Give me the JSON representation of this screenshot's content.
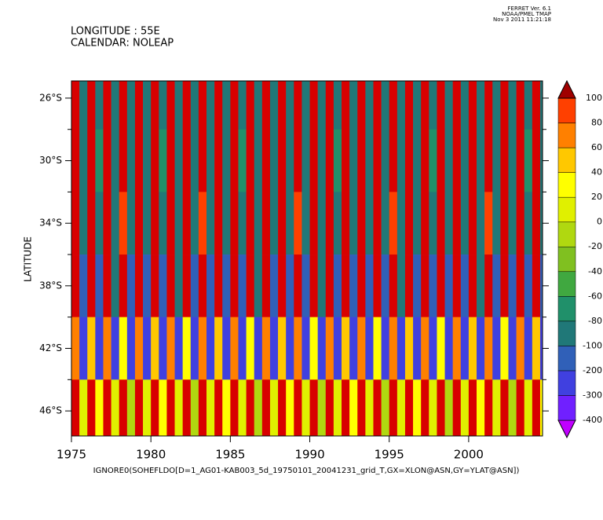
{
  "chart_data": {
    "type": "heatmap",
    "header_left": [
      "LONGITUDE : 55E",
      "CALENDAR: NOLEAP"
    ],
    "header_right": [
      "FERRET Ver. 6.1",
      "NOAA/PMEL TMAP",
      "Nov  3 2011 11:21:18"
    ],
    "ylabel": "LATITUDE",
    "xlabel": "IGNORE0(SOHEFLDO[D=1_AG01-KAB003_5d_19750101_20041231_grid_T,GX=XLON@ASN,GY=YLAT@ASN])",
    "xlim": [
      1975,
      2004.65
    ],
    "xticks": [
      1975,
      1980,
      1985,
      1990,
      1995,
      2000
    ],
    "ylim": [
      -47.6,
      -24.9
    ],
    "yticks": [
      {
        "value": -26,
        "label": "26°S"
      },
      {
        "value": -30,
        "label": "30°S"
      },
      {
        "value": -34,
        "label": "34°S"
      },
      {
        "value": -38,
        "label": "38°S"
      },
      {
        "value": -42,
        "label": "42°S"
      },
      {
        "value": -46,
        "label": "46°S"
      }
    ],
    "y_minor_ticks": [
      -28,
      -32,
      -36,
      -40,
      -44
    ],
    "x": [
      1975,
      1975.5,
      1976,
      1976.5,
      1977,
      1977.5,
      1978,
      1978.5,
      1979,
      1979.5,
      1980,
      1980.5,
      1981,
      1981.5,
      1982,
      1982.5,
      1983,
      1983.5,
      1984,
      1984.5,
      1985,
      1985.5,
      1986,
      1986.5,
      1987,
      1987.5,
      1988,
      1988.5,
      1989,
      1989.5,
      1990,
      1990.5,
      1991,
      1991.5,
      1992,
      1992.5,
      1993,
      1993.5,
      1994,
      1994.5,
      1995,
      1995.5,
      1996,
      1996.5,
      1997,
      1997.5,
      1998,
      1998.5,
      1999,
      1999.5,
      2000,
      2000.5,
      2001,
      2001.5,
      2002,
      2002.5,
      2003,
      2003.5,
      2004,
      2004.5
    ],
    "y": [
      -26,
      -30,
      -34,
      -38,
      -42,
      -46
    ],
    "z": [
      [
        100,
        -100,
        100,
        -100,
        100,
        -100,
        100,
        -100,
        100,
        -100,
        100,
        -100,
        100,
        -100,
        100,
        -100,
        100,
        -100,
        100,
        -100,
        100,
        -100,
        100,
        -100,
        100,
        -100,
        100,
        -100,
        100,
        -100,
        100,
        -100,
        100,
        -100,
        100,
        -100,
        100,
        -100,
        100,
        -100,
        100,
        -100,
        100,
        -100,
        100,
        -100,
        100,
        -100,
        100,
        -100,
        100,
        -100,
        100,
        -100,
        100,
        -100,
        100,
        -100,
        100,
        -100
      ],
      [
        100,
        -100,
        100,
        -80,
        100,
        -100,
        100,
        -100,
        100,
        -100,
        100,
        -80,
        100,
        -100,
        100,
        -100,
        100,
        -100,
        100,
        -100,
        100,
        -80,
        100,
        -100,
        100,
        -100,
        100,
        -100,
        100,
        -100,
        100,
        -100,
        100,
        -80,
        100,
        -100,
        100,
        -100,
        100,
        -100,
        100,
        -100,
        100,
        -100,
        100,
        -80,
        100,
        -100,
        100,
        -100,
        100,
        -100,
        100,
        -100,
        100,
        -100,
        100,
        -80,
        100,
        -100
      ],
      [
        100,
        -100,
        100,
        -100,
        100,
        -100,
        80,
        -100,
        100,
        -100,
        100,
        -100,
        100,
        -100,
        100,
        -100,
        80,
        -100,
        100,
        -100,
        100,
        -100,
        100,
        -100,
        100,
        -100,
        100,
        -100,
        80,
        -100,
        100,
        -100,
        100,
        -100,
        100,
        -100,
        100,
        -100,
        100,
        -100,
        80,
        -100,
        100,
        -100,
        100,
        -100,
        100,
        -100,
        100,
        -100,
        100,
        -100,
        80,
        -100,
        100,
        -100,
        100,
        -100,
        100,
        -100
      ],
      [
        100,
        -200,
        100,
        -200,
        100,
        -100,
        100,
        -200,
        100,
        -200,
        100,
        -200,
        100,
        -100,
        100,
        -200,
        100,
        -200,
        100,
        -200,
        100,
        -200,
        100,
        -100,
        100,
        -200,
        100,
        -200,
        100,
        -200,
        100,
        -100,
        100,
        -200,
        100,
        -200,
        100,
        -200,
        100,
        -200,
        100,
        -100,
        100,
        -200,
        100,
        -200,
        100,
        -200,
        100,
        -200,
        100,
        -100,
        100,
        -200,
        100,
        -200,
        100,
        -200,
        100,
        -200
      ],
      [
        60,
        -300,
        40,
        -300,
        60,
        -300,
        20,
        -300,
        60,
        -300,
        40,
        -300,
        60,
        -300,
        20,
        -300,
        60,
        -300,
        40,
        -300,
        60,
        -300,
        20,
        -300,
        60,
        -300,
        40,
        -300,
        60,
        -300,
        20,
        -300,
        60,
        -300,
        40,
        -300,
        60,
        -300,
        20,
        -300,
        60,
        -300,
        40,
        -300,
        60,
        -300,
        20,
        -300,
        60,
        -300,
        40,
        -300,
        60,
        -300,
        20,
        -300,
        60,
        -300,
        40,
        -300
      ],
      [
        100,
        0,
        100,
        20,
        100,
        0,
        100,
        -20,
        100,
        0,
        100,
        20,
        100,
        0,
        100,
        -20,
        100,
        0,
        100,
        20,
        100,
        0,
        100,
        -20,
        100,
        0,
        100,
        20,
        100,
        0,
        100,
        -20,
        100,
        0,
        100,
        20,
        100,
        0,
        100,
        -20,
        100,
        0,
        100,
        20,
        100,
        0,
        100,
        -20,
        100,
        0,
        100,
        20,
        100,
        0,
        100,
        -20,
        100,
        0,
        100,
        20
      ]
    ],
    "levels": [
      -400,
      -300,
      -200,
      -100,
      -80,
      -60,
      -40,
      -20,
      0,
      20,
      40,
      60,
      80,
      100
    ],
    "colors": [
      "#c000ff",
      "#7020ff",
      "#4040e0",
      "#3060b8",
      "#207878",
      "#20906a",
      "#40a840",
      "#80c020",
      "#b0d810",
      "#e0f000",
      "#ffff00",
      "#ffc800",
      "#ff8000",
      "#ff4000",
      "#d80000",
      "#a00000"
    ]
  }
}
